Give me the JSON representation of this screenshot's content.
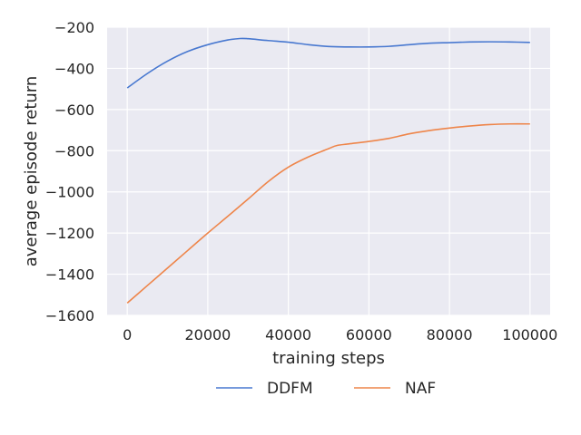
{
  "chart_data": {
    "type": "line",
    "title": "",
    "xlabel": "training steps",
    "ylabel": "average episode return",
    "xlim": [
      -5000,
      105000
    ],
    "ylim": [
      -1600,
      -200
    ],
    "xticks": [
      0,
      20000,
      40000,
      60000,
      80000,
      100000
    ],
    "xtick_labels": [
      "0",
      "20000",
      "40000",
      "60000",
      "80000",
      "100000"
    ],
    "yticks": [
      -200,
      -400,
      -600,
      -800,
      -1000,
      -1200,
      -1400,
      -1600
    ],
    "ytick_labels": [
      "−200",
      "−400",
      "−600",
      "−800",
      "−1000",
      "−1200",
      "−1400",
      "−1600"
    ],
    "grid": true,
    "legend_position": "below plot",
    "series": [
      {
        "name": "DDFM",
        "color": "#4878d0",
        "x": [
          0,
          5000,
          10000,
          15000,
          20000,
          25000,
          28000,
          30000,
          35000,
          40000,
          45000,
          50000,
          55000,
          60000,
          65000,
          70000,
          75000,
          80000,
          85000,
          90000,
          95000,
          100000
        ],
        "y": [
          -495,
          -425,
          -365,
          -318,
          -285,
          -262,
          -255,
          -256,
          -265,
          -273,
          -285,
          -294,
          -296,
          -296,
          -293,
          -285,
          -278,
          -275,
          -272,
          -271,
          -272,
          -274
        ]
      },
      {
        "name": "NAF",
        "color": "#ee854a",
        "x": [
          0,
          5000,
          10000,
          15000,
          20000,
          25000,
          30000,
          35000,
          40000,
          45000,
          50000,
          52000,
          55000,
          60000,
          65000,
          70000,
          75000,
          80000,
          85000,
          90000,
          95000,
          100000
        ],
        "y": [
          -1540,
          -1455,
          -1370,
          -1285,
          -1200,
          -1118,
          -1035,
          -950,
          -880,
          -830,
          -790,
          -775,
          -767,
          -755,
          -740,
          -718,
          -702,
          -690,
          -680,
          -673,
          -670,
          -670
        ]
      }
    ]
  }
}
